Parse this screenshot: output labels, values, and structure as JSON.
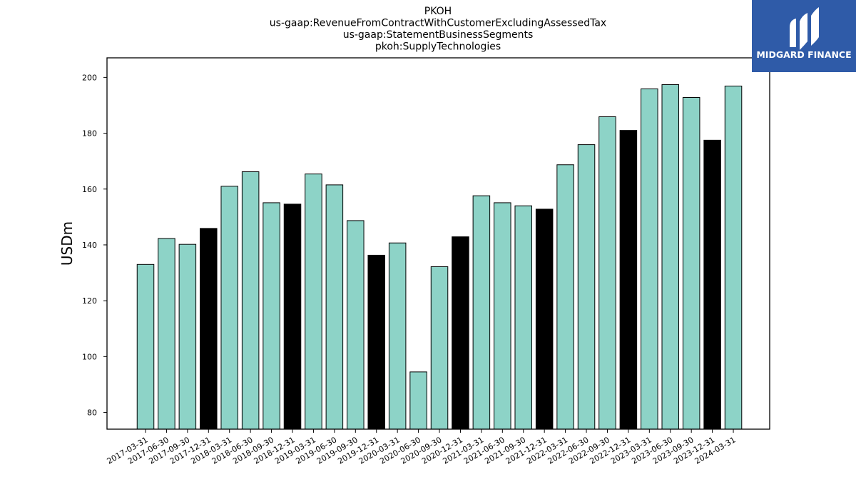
{
  "brand": {
    "name": "MIDGARD FINANCE",
    "color": "#2f5ba8"
  },
  "chart_data": {
    "type": "bar",
    "title_lines": [
      "PKOH",
      "us-gaap:RevenueFromContractWithCustomerExcludingAssessedTax",
      "us-gaap:StatementBusinessSegments",
      "pkoh:SupplyTechnologies"
    ],
    "xlabel": "",
    "ylabel": "USDm",
    "ylim": [
      74,
      207
    ],
    "yticks": [
      80,
      100,
      120,
      140,
      160,
      180,
      200
    ],
    "grid": false,
    "colors": {
      "quarter": "#8dd3c7",
      "year_end": "#000000"
    },
    "categories": [
      "2017-03-31",
      "2017-06-30",
      "2017-09-30",
      "2017-12-31",
      "2018-03-31",
      "2018-06-30",
      "2018-09-30",
      "2018-12-31",
      "2019-03-31",
      "2019-06-30",
      "2019-09-30",
      "2019-12-31",
      "2020-03-31",
      "2020-06-30",
      "2020-09-30",
      "2020-12-31",
      "2021-03-31",
      "2021-06-30",
      "2021-09-30",
      "2021-12-31",
      "2022-03-31",
      "2022-06-30",
      "2022-09-30",
      "2022-12-31",
      "2023-03-31",
      "2023-06-30",
      "2023-09-30",
      "2023-12-31",
      "2024-03-31"
    ],
    "values": [
      133.0,
      142.3,
      140.2,
      145.9,
      161.0,
      166.2,
      155.1,
      154.6,
      165.4,
      161.5,
      148.7,
      136.3,
      140.7,
      94.5,
      132.2,
      142.9,
      157.6,
      155.1,
      154.0,
      152.8,
      168.7,
      175.9,
      185.9,
      181.0,
      195.9,
      197.4,
      192.8,
      177.5,
      196.9
    ]
  }
}
